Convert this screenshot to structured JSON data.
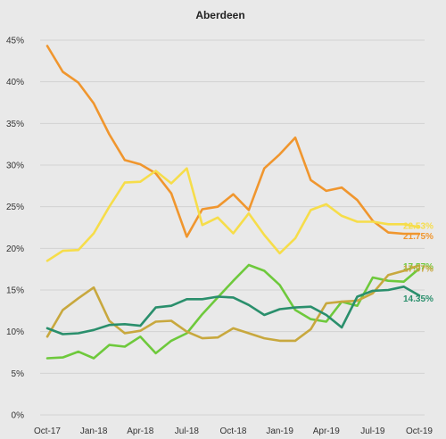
{
  "chart_data": {
    "type": "line",
    "title": "Aberdeen",
    "xlabel": "",
    "ylabel": "",
    "ylim": [
      0,
      45
    ],
    "grid": true,
    "legend": "none",
    "yticks": [
      "0%",
      "5%",
      "10%",
      "15%",
      "20%",
      "25%",
      "30%",
      "35%",
      "40%",
      "45%"
    ],
    "xticks": [
      "Oct-17",
      "Jan-18",
      "Apr-18",
      "Jul-18",
      "Oct-18",
      "Jan-19",
      "Apr-19",
      "Jul-19",
      "Oct-19"
    ],
    "x": [
      "Oct-17",
      "Nov-17",
      "Dec-17",
      "Jan-18",
      "Feb-18",
      "Mar-18",
      "Apr-18",
      "May-18",
      "Jun-18",
      "Jul-18",
      "Aug-18",
      "Sep-18",
      "Oct-18",
      "Nov-18",
      "Dec-18",
      "Jan-19",
      "Feb-19",
      "Mar-19",
      "Apr-19",
      "May-19",
      "Jun-19",
      "Jul-19",
      "Aug-19",
      "Sep-19",
      "Oct-19"
    ],
    "series": [
      {
        "color": "#f0962e",
        "end_label": "21.75%",
        "values": [
          44.3,
          41.2,
          39.9,
          37.4,
          33.7,
          30.6,
          30.1,
          29.0,
          26.6,
          21.4,
          24.7,
          25.0,
          26.5,
          24.6,
          29.6,
          31.3,
          33.3,
          28.2,
          26.9,
          27.3,
          25.8,
          23.3,
          21.9,
          21.75,
          21.75
        ]
      },
      {
        "color": "#f6dd4a",
        "end_label": "22.53%",
        "values": [
          18.5,
          19.7,
          19.8,
          21.8,
          25.0,
          27.9,
          28.0,
          29.3,
          27.8,
          29.6,
          22.8,
          23.7,
          21.8,
          24.2,
          21.6,
          19.4,
          21.2,
          24.6,
          25.3,
          23.9,
          23.2,
          23.2,
          22.9,
          22.9,
          22.53
        ]
      },
      {
        "color": "#6ec93c",
        "end_label": "17.57%",
        "values": [
          6.8,
          6.9,
          7.6,
          6.8,
          8.4,
          8.2,
          9.4,
          7.4,
          8.9,
          9.8,
          12.1,
          14.1,
          16.1,
          18.0,
          17.3,
          15.6,
          12.6,
          11.5,
          11.2,
          13.6,
          13.1,
          16.5,
          16.1,
          16.0,
          17.57
        ]
      },
      {
        "color": "#c8a83e",
        "end_label": "17.97%",
        "values": [
          9.4,
          12.6,
          14.0,
          15.3,
          11.3,
          9.8,
          10.1,
          11.2,
          11.3,
          10.0,
          9.2,
          9.3,
          10.4,
          9.8,
          9.2,
          8.9,
          8.9,
          10.3,
          13.4,
          13.6,
          13.7,
          14.6,
          16.8,
          17.3,
          17.97
        ]
      },
      {
        "color": "#2a8f6c",
        "end_label": "14.35%",
        "values": [
          10.4,
          9.7,
          9.8,
          10.2,
          10.8,
          10.9,
          10.7,
          12.9,
          13.1,
          13.9,
          13.9,
          14.2,
          14.1,
          13.2,
          12.0,
          12.7,
          12.9,
          13.0,
          12.0,
          10.5,
          14.2,
          14.9,
          15.0,
          15.4,
          14.35
        ]
      }
    ]
  }
}
